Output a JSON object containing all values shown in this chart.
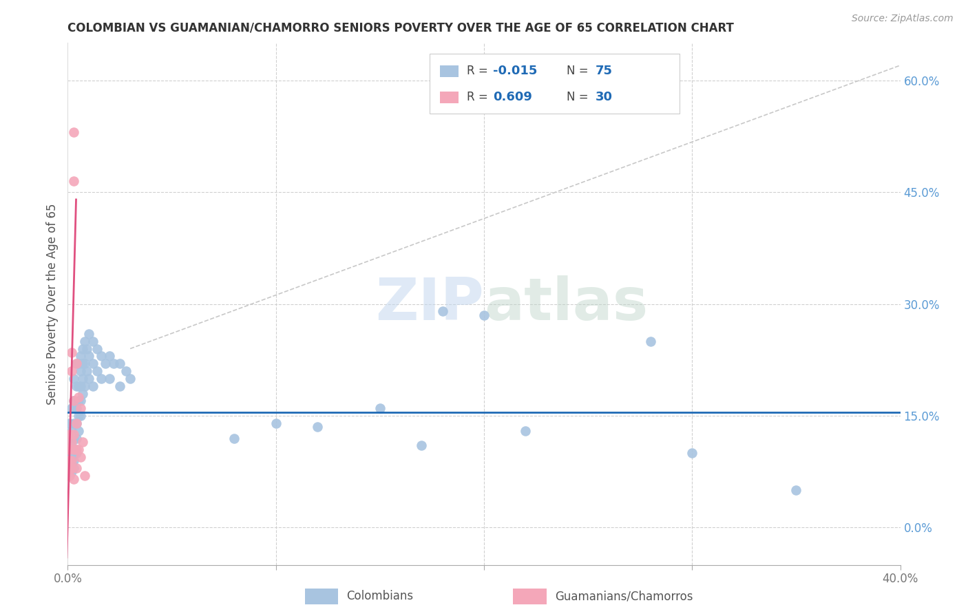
{
  "title": "COLOMBIAN VS GUAMANIAN/CHAMORRO SENIORS POVERTY OVER THE AGE OF 65 CORRELATION CHART",
  "source": "Source: ZipAtlas.com",
  "ylabel": "Seniors Poverty Over the Age of 65",
  "xlim": [
    0.0,
    0.4
  ],
  "ylim": [
    -0.05,
    0.65
  ],
  "blue_R": -0.015,
  "blue_N": 75,
  "pink_R": 0.609,
  "pink_N": 30,
  "blue_color": "#a8c4e0",
  "pink_color": "#f4a7b9",
  "blue_line_color": "#1f6ab5",
  "pink_line_color": "#e05080",
  "gray_line_color": "#c8c8c8",
  "watermark": "ZIPatlas",
  "colombian_x": [
    0.0,
    0.0,
    0.0,
    0.001,
    0.001,
    0.001,
    0.001,
    0.001,
    0.002,
    0.002,
    0.002,
    0.002,
    0.002,
    0.002,
    0.003,
    0.003,
    0.003,
    0.003,
    0.003,
    0.003,
    0.003,
    0.004,
    0.004,
    0.004,
    0.004,
    0.004,
    0.004,
    0.005,
    0.005,
    0.005,
    0.005,
    0.005,
    0.006,
    0.006,
    0.006,
    0.006,
    0.006,
    0.007,
    0.007,
    0.007,
    0.007,
    0.008,
    0.008,
    0.008,
    0.009,
    0.009,
    0.01,
    0.01,
    0.01,
    0.012,
    0.012,
    0.012,
    0.014,
    0.014,
    0.016,
    0.016,
    0.018,
    0.02,
    0.02,
    0.022,
    0.025,
    0.025,
    0.028,
    0.03,
    0.18,
    0.28,
    0.3,
    0.35,
    0.2,
    0.15,
    0.22,
    0.17,
    0.12,
    0.1,
    0.08
  ],
  "colombian_y": [
    0.1,
    0.085,
    0.075,
    0.14,
    0.12,
    0.1,
    0.085,
    0.075,
    0.16,
    0.13,
    0.11,
    0.095,
    0.085,
    0.075,
    0.2,
    0.17,
    0.14,
    0.12,
    0.1,
    0.09,
    0.08,
    0.22,
    0.19,
    0.16,
    0.14,
    0.12,
    0.1,
    0.22,
    0.19,
    0.17,
    0.15,
    0.13,
    0.23,
    0.21,
    0.19,
    0.17,
    0.15,
    0.24,
    0.22,
    0.2,
    0.18,
    0.25,
    0.22,
    0.19,
    0.24,
    0.21,
    0.26,
    0.23,
    0.2,
    0.25,
    0.22,
    0.19,
    0.24,
    0.21,
    0.23,
    0.2,
    0.22,
    0.23,
    0.2,
    0.22,
    0.22,
    0.19,
    0.21,
    0.2,
    0.29,
    0.25,
    0.1,
    0.05,
    0.285,
    0.16,
    0.13,
    0.11,
    0.135,
    0.14,
    0.12
  ],
  "guamanian_x": [
    0.0,
    0.0,
    0.0,
    0.0,
    0.001,
    0.001,
    0.001,
    0.001,
    0.001,
    0.002,
    0.002,
    0.002,
    0.002,
    0.002,
    0.003,
    0.003,
    0.003,
    0.003,
    0.003,
    0.003,
    0.004,
    0.004,
    0.004,
    0.004,
    0.005,
    0.005,
    0.006,
    0.006,
    0.007,
    0.008
  ],
  "guamanian_y": [
    0.105,
    0.09,
    0.08,
    0.07,
    0.125,
    0.105,
    0.09,
    0.08,
    0.07,
    0.235,
    0.21,
    0.115,
    0.09,
    0.08,
    0.53,
    0.465,
    0.17,
    0.125,
    0.105,
    0.065,
    0.22,
    0.14,
    0.105,
    0.08,
    0.175,
    0.105,
    0.16,
    0.095,
    0.115,
    0.07
  ],
  "blue_hline_y": 0.155,
  "pink_line_x0": -0.0005,
  "pink_line_y0": -0.04,
  "pink_line_x1": 0.004,
  "pink_line_y1": 0.44,
  "gray_line_x": [
    0.03,
    0.4
  ],
  "gray_line_y": [
    0.24,
    0.62
  ]
}
